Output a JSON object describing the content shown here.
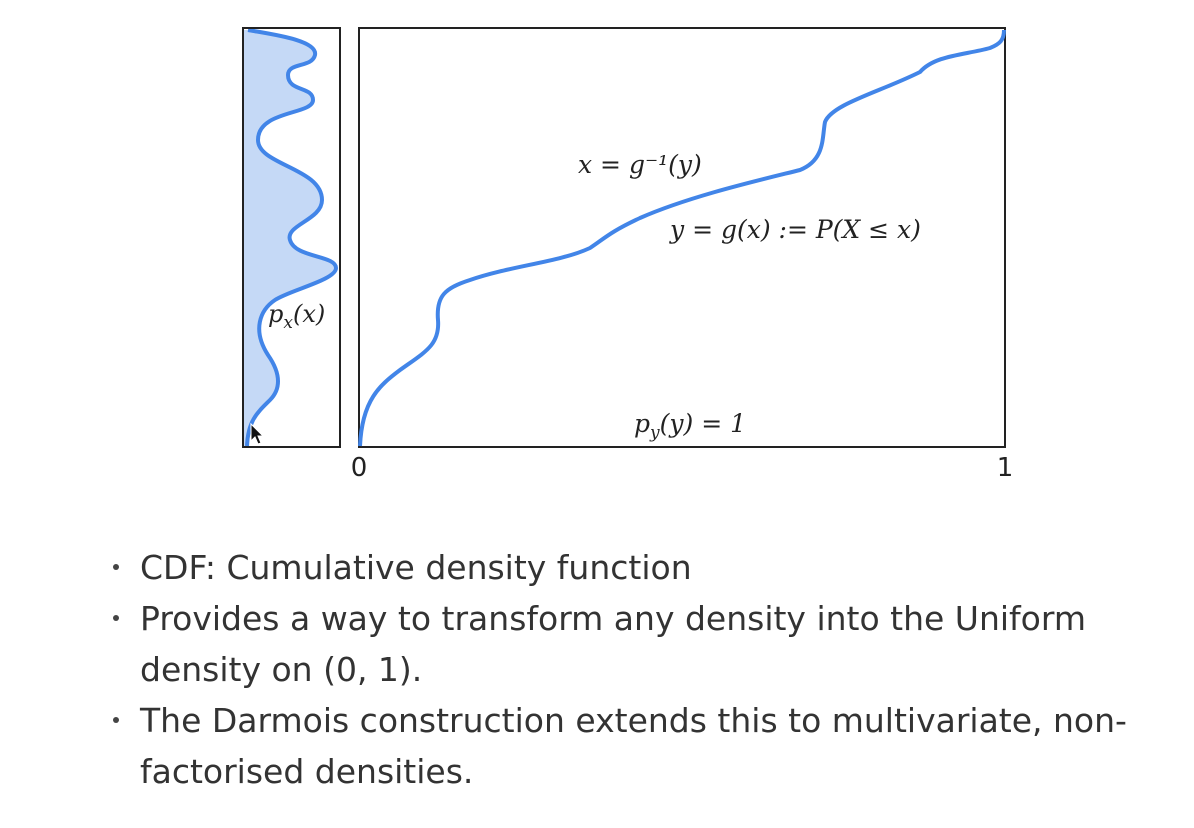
{
  "figure": {
    "labels": {
      "px": "p",
      "px_sub": "x",
      "px_arg": "(x)",
      "inverse": "x = g⁻¹(y)",
      "cdf": "y = g(x) := P(X ≤ x)",
      "py": "p",
      "py_sub": "y",
      "py_rest": "(y) = 1"
    },
    "ticks": {
      "x0": "0",
      "x1": "1"
    },
    "colors": {
      "curve": "#4285e8",
      "fill": "#c5d9f6",
      "frame": "#222222"
    },
    "cursor_icon": "arrow-cursor-icon"
  },
  "bullets": [
    {
      "text": "CDF: Cumulative density function"
    },
    {
      "text": "Provides a way to transform any density into the Uniform density on (0, 1)."
    },
    {
      "text": "The Darmois construction extends this to multivariate, non-factorised densities."
    }
  ]
}
